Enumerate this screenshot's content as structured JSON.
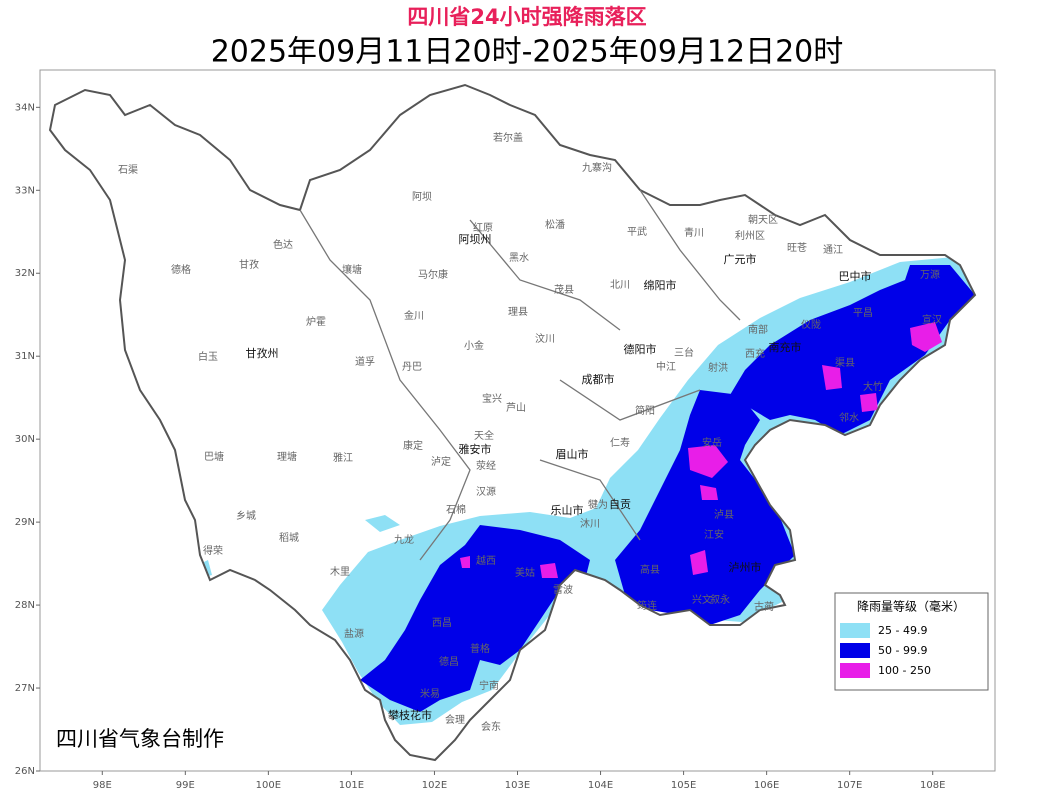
{
  "title": "四川省24小时强降雨落区",
  "subtitle": "2025年09月11日20时-2025年09月12日20时",
  "credit": "四川省气象台制作",
  "legend": {
    "title": "降雨量等级（毫米）",
    "items": [
      {
        "label": "25 - 49.9",
        "color": "#8ee0f5"
      },
      {
        "label": "50 - 99.9",
        "color": "#0000e8"
      },
      {
        "label": "100 - 250",
        "color": "#e81ee8"
      }
    ]
  },
  "axes": {
    "xlim": [
      97.25,
      108.75
    ],
    "ylim": [
      26,
      34.45
    ],
    "xticks": [
      {
        "value": 98,
        "label": "98E"
      },
      {
        "value": 99,
        "label": "99E"
      },
      {
        "value": 100,
        "label": "100E"
      },
      {
        "value": 101,
        "label": "101E"
      },
      {
        "value": 102,
        "label": "102E"
      },
      {
        "value": 103,
        "label": "103E"
      },
      {
        "value": 104,
        "label": "104E"
      },
      {
        "value": 105,
        "label": "105E"
      },
      {
        "value": 106,
        "label": "106E"
      },
      {
        "value": 107,
        "label": "107E"
      },
      {
        "value": 108,
        "label": "108E"
      }
    ],
    "yticks": [
      {
        "value": 26,
        "label": "26N"
      },
      {
        "value": 27,
        "label": "27N"
      },
      {
        "value": 28,
        "label": "28N"
      },
      {
        "value": 29,
        "label": "29N"
      },
      {
        "value": 30,
        "label": "30N"
      },
      {
        "value": 31,
        "label": "31N"
      },
      {
        "value": 32,
        "label": "32N"
      },
      {
        "value": 33,
        "label": "33N"
      },
      {
        "value": 34,
        "label": "34N"
      }
    ]
  },
  "cities": [
    "阿坝州",
    "甘孜州",
    "成都市",
    "德阳市",
    "绵阳市",
    "广元市",
    "巴中市",
    "南充市",
    "雅安市",
    "眉山市",
    "乐山市",
    "自贡",
    "泸州市",
    "攀枝花市"
  ],
  "counties": [
    "石渠",
    "若尔盖",
    "九寨沟",
    "阿坝",
    "红原",
    "松潘",
    "平武",
    "青川",
    "朝天区",
    "利州区",
    "旺苍",
    "通江",
    "万源",
    "色达",
    "德格",
    "甘孜",
    "壤塘",
    "马尔康",
    "黑水",
    "茂县",
    "北川",
    "金川",
    "炉霍",
    "小金",
    "理县",
    "汶川",
    "白玉",
    "道孚",
    "丹巴",
    "宝兴",
    "芦山",
    "康定",
    "天全",
    "荥经",
    "巴塘",
    "理塘",
    "雅江",
    "泸定",
    "汉源",
    "石棉",
    "乡城",
    "稻城",
    "九龙",
    "得荣",
    "木里",
    "越西",
    "美姑",
    "雷波",
    "盐源",
    "西昌",
    "普格",
    "德昌",
    "宁南",
    "米易",
    "会理",
    "会东",
    "宣汉",
    "平昌",
    "仪陇",
    "南部",
    "渠县",
    "大竹",
    "邻水",
    "西充",
    "射洪",
    "三台",
    "中江",
    "安岳",
    "仁寿",
    "简阳",
    "犍为",
    "沐川",
    "高县",
    "筠连",
    "兴文",
    "叙永",
    "古蔺",
    "泸县",
    "江安"
  ]
}
